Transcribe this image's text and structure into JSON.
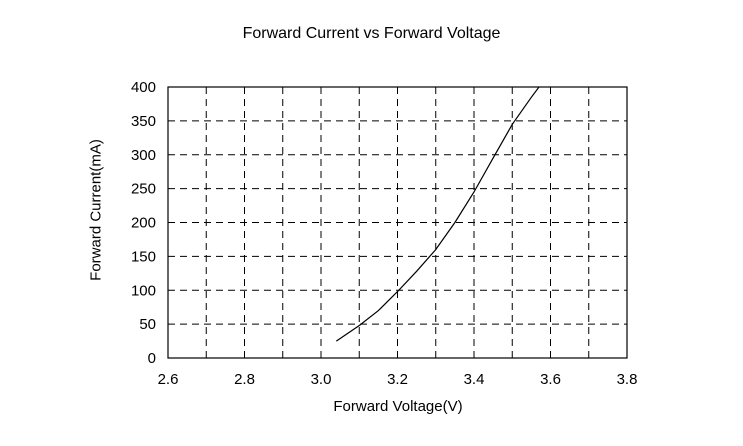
{
  "chart_data": {
    "type": "line",
    "title": "Forward Current vs Forward Voltage",
    "xlabel": "Forward Voltage(V)",
    "ylabel": "Forward Current(mA)",
    "xlim": [
      2.6,
      3.8
    ],
    "ylim": [
      0,
      400
    ],
    "x_ticks": [
      2.6,
      2.8,
      3.0,
      3.2,
      3.4,
      3.6,
      3.8
    ],
    "x_tick_labels": [
      "2.6",
      "2.8",
      "3.0",
      "3.2",
      "3.4",
      "3.6",
      "3.8"
    ],
    "y_ticks": [
      0,
      50,
      100,
      150,
      200,
      250,
      300,
      350,
      400
    ],
    "y_tick_labels": [
      "0",
      "50",
      "100",
      "150",
      "200",
      "250",
      "300",
      "350",
      "400"
    ],
    "grid": true,
    "grid_style": "dashed",
    "series": [
      {
        "color": "#000000",
        "x": [
          3.04,
          3.1,
          3.15,
          3.2,
          3.25,
          3.3,
          3.35,
          3.4,
          3.45,
          3.5,
          3.55,
          3.57
        ],
        "y": [
          25,
          48,
          70,
          98,
          128,
          160,
          200,
          245,
          295,
          345,
          385,
          400
        ]
      }
    ]
  }
}
